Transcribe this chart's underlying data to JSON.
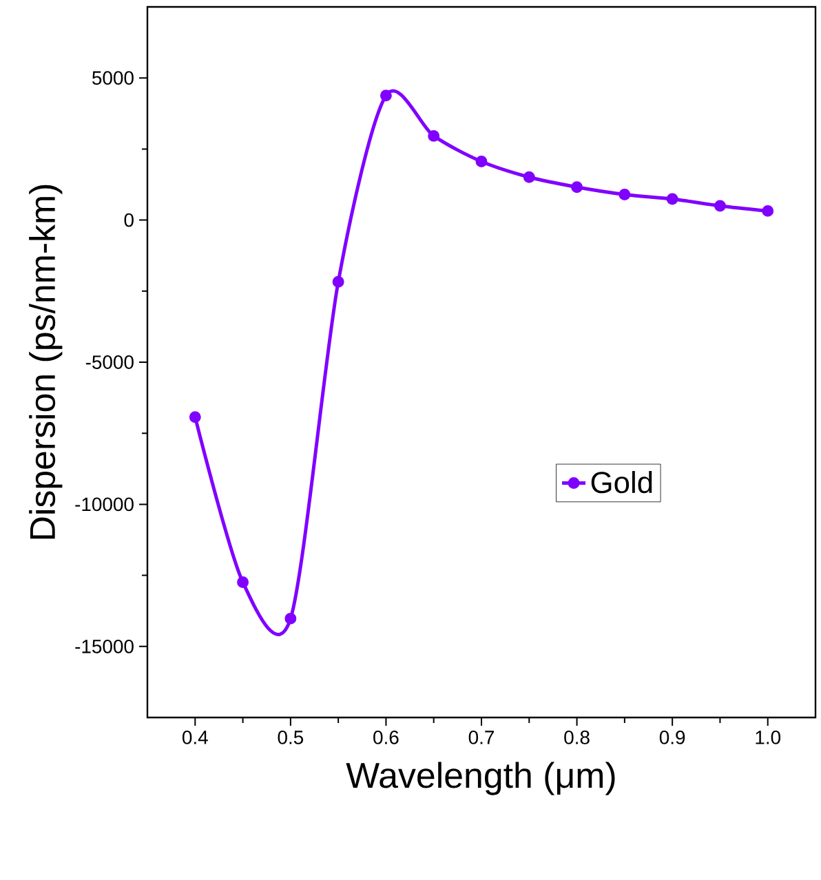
{
  "chart_data": {
    "type": "line",
    "xlabel": "Wavelength (μm)",
    "ylabel": "Dispersion (ps/nm-km)",
    "x": [
      0.4,
      0.45,
      0.5,
      0.55,
      0.6,
      0.65,
      0.7,
      0.75,
      0.8,
      0.85,
      0.9,
      0.95,
      1.0
    ],
    "series": [
      {
        "name": "Gold",
        "color": "#8000ff",
        "values": [
          -6930,
          -12740,
          -14020,
          -2170,
          4380,
          2960,
          2060,
          1510,
          1160,
          900,
          740,
          500,
          320
        ]
      }
    ],
    "xlim": [
      0.35,
      1.05
    ],
    "ylim": [
      -17500,
      7500
    ],
    "xticks": [
      0.4,
      0.5,
      0.6,
      0.7,
      0.8,
      0.9,
      {
        "value": 1.0,
        "label": "1.0"
      }
    ],
    "yticks": [
      -15000,
      -10000,
      -5000,
      0,
      5000
    ],
    "legend": "right",
    "marker": "circle",
    "line_style": "solid",
    "grid": false
  }
}
